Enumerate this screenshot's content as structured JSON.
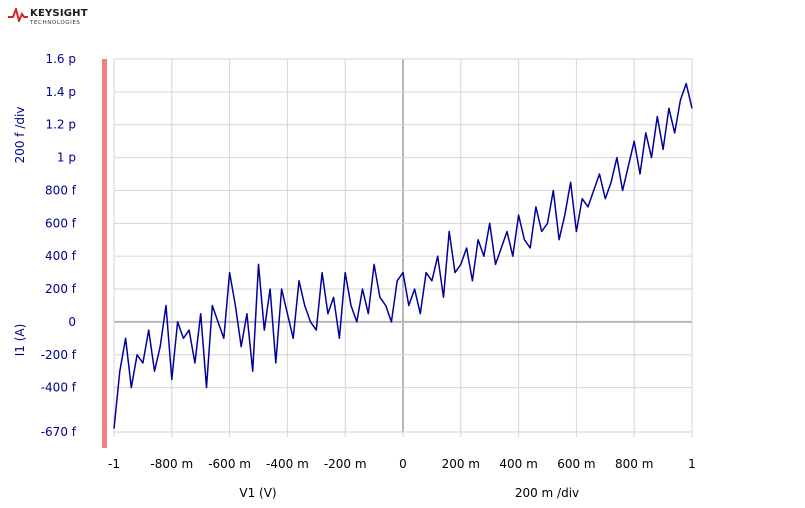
{
  "logo": {
    "brand": "KEYSIGHT",
    "sub": "TECHNOLOGIES"
  },
  "colors": {
    "trace": "#00009b",
    "grid": "#d6d6d6",
    "axis": "#b8b8b8",
    "marker": "#f08080",
    "ylabel": "#00008b"
  },
  "chart_data": {
    "type": "line",
    "xlabel": "V1 (V)",
    "ylabel": "I1 (A)",
    "x_div_label": "200 m /div",
    "y_div_label": "200 f /div",
    "xlim": [
      -1,
      1
    ],
    "ylim": [
      -0.67,
      1.6
    ],
    "x_ticks": [
      {
        "v": -1,
        "label": "-1"
      },
      {
        "v": -0.8,
        "label": "-800 m"
      },
      {
        "v": -0.6,
        "label": "-600 m"
      },
      {
        "v": -0.4,
        "label": "-400 m"
      },
      {
        "v": -0.2,
        "label": "-200 m"
      },
      {
        "v": 0,
        "label": "0"
      },
      {
        "v": 0.2,
        "label": "200 m"
      },
      {
        "v": 0.4,
        "label": "400 m"
      },
      {
        "v": 0.6,
        "label": "600 m"
      },
      {
        "v": 0.8,
        "label": "800 m"
      },
      {
        "v": 1,
        "label": "1"
      }
    ],
    "y_ticks": [
      {
        "v": 1.6,
        "label": "1.6 p"
      },
      {
        "v": 1.4,
        "label": "1.4 p"
      },
      {
        "v": 1.2,
        "label": "1.2 p"
      },
      {
        "v": 1.0,
        "label": "1 p"
      },
      {
        "v": 0.8,
        "label": "800 f"
      },
      {
        "v": 0.6,
        "label": "600 f"
      },
      {
        "v": 0.4,
        "label": "400 f"
      },
      {
        "v": 0.2,
        "label": "200 f"
      },
      {
        "v": 0,
        "label": "0"
      },
      {
        "v": -0.2,
        "label": "-200 f"
      },
      {
        "v": -0.4,
        "label": "-400 f"
      },
      {
        "v": -0.67,
        "label": "-670 f"
      }
    ],
    "grid": true,
    "series": [
      {
        "x": [
          -1,
          -0.98,
          -0.96,
          -0.94,
          -0.92,
          -0.9,
          -0.88,
          -0.86,
          -0.84,
          -0.82,
          -0.8,
          -0.78,
          -0.76,
          -0.74,
          -0.72,
          -0.7,
          -0.68,
          -0.66,
          -0.64,
          -0.62,
          -0.6,
          -0.58,
          -0.56,
          -0.54,
          -0.52,
          -0.5,
          -0.48,
          -0.46,
          -0.44,
          -0.42,
          -0.4,
          -0.38,
          -0.36,
          -0.34,
          -0.32,
          -0.3,
          -0.28,
          -0.26,
          -0.24,
          -0.22,
          -0.2,
          -0.18,
          -0.16,
          -0.14,
          -0.12,
          -0.1,
          -0.08,
          -0.06,
          -0.04,
          -0.02,
          0,
          0.02,
          0.04,
          0.06,
          0.08,
          0.1,
          0.12,
          0.14,
          0.16,
          0.18,
          0.2,
          0.22,
          0.24,
          0.26,
          0.28,
          0.3,
          0.32,
          0.34,
          0.36,
          0.38,
          0.4,
          0.42,
          0.44,
          0.46,
          0.48,
          0.5,
          0.52,
          0.54,
          0.56,
          0.58,
          0.6,
          0.62,
          0.64,
          0.66,
          0.68,
          0.7,
          0.72,
          0.74,
          0.76,
          0.78,
          0.8,
          0.82,
          0.84,
          0.86,
          0.88,
          0.9,
          0.92,
          0.94,
          0.96,
          0.98,
          1
        ],
        "values": [
          -0.65,
          -0.3,
          -0.1,
          -0.4,
          -0.2,
          -0.25,
          -0.05,
          -0.3,
          -0.15,
          0.1,
          -0.35,
          0.0,
          -0.1,
          -0.05,
          -0.25,
          0.05,
          -0.4,
          0.1,
          0.0,
          -0.1,
          0.3,
          0.1,
          -0.15,
          0.05,
          -0.3,
          0.35,
          -0.05,
          0.2,
          -0.25,
          0.2,
          0.05,
          -0.1,
          0.25,
          0.1,
          0.0,
          -0.05,
          0.3,
          0.05,
          0.15,
          -0.1,
          0.3,
          0.1,
          0.0,
          0.2,
          0.05,
          0.35,
          0.15,
          0.1,
          0.0,
          0.25,
          0.3,
          0.1,
          0.2,
          0.05,
          0.3,
          0.25,
          0.4,
          0.15,
          0.55,
          0.3,
          0.35,
          0.45,
          0.25,
          0.5,
          0.4,
          0.6,
          0.35,
          0.45,
          0.55,
          0.4,
          0.65,
          0.5,
          0.45,
          0.7,
          0.55,
          0.6,
          0.8,
          0.5,
          0.65,
          0.85,
          0.55,
          0.75,
          0.7,
          0.8,
          0.9,
          0.75,
          0.85,
          1.0,
          0.8,
          0.95,
          1.1,
          0.9,
          1.15,
          1.0,
          1.25,
          1.05,
          1.3,
          1.15,
          1.35,
          1.45,
          1.3
        ]
      }
    ]
  }
}
